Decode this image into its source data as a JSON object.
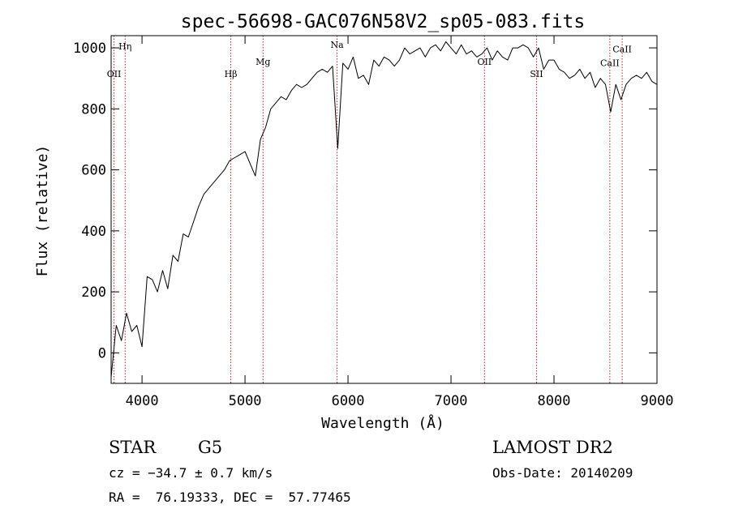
{
  "chart_data": {
    "type": "line",
    "title": "spec-56698-GAC076N58V2_sp05-083.fits",
    "xlabel": "Wavelength (Å)",
    "ylabel": "Flux (relative)",
    "xlim": [
      3700,
      9000
    ],
    "ylim": [
      -100,
      1040
    ],
    "x_ticks": [
      4000,
      5000,
      6000,
      7000,
      8000,
      9000
    ],
    "y_ticks": [
      0,
      200,
      400,
      600,
      800,
      1000
    ],
    "grid": false,
    "line_color": "#000000",
    "marker_color": "#b22222",
    "spectral_lines": [
      {
        "label": "Hη",
        "wavelength": 3836,
        "label_y": 995
      },
      {
        "label": "OII",
        "wavelength": 3728,
        "label_y": 905
      },
      {
        "label": "Hβ",
        "wavelength": 4862,
        "label_y": 905
      },
      {
        "label": "Mg",
        "wavelength": 5175,
        "label_y": 945
      },
      {
        "label": "Na",
        "wavelength": 5894,
        "label_y": 1000
      },
      {
        "label": "OII",
        "wavelength": 7325,
        "label_y": 945
      },
      {
        "label": "SII",
        "wavelength": 7830,
        "label_y": 905
      },
      {
        "label": "CaII",
        "wavelength": 8542,
        "label_y": 940
      },
      {
        "label": "CaII",
        "wavelength": 8662,
        "label_y": 985
      }
    ],
    "series": [
      {
        "x": [
          3700,
          3750,
          3800,
          3850,
          3900,
          3950,
          4000,
          4050,
          4100,
          4150,
          4200,
          4250,
          4300,
          4350,
          4400,
          4450,
          4500,
          4550,
          4600,
          4650,
          4700,
          4750,
          4800,
          4850,
          4900,
          4950,
          5000,
          5050,
          5100,
          5150,
          5200,
          5250,
          5300,
          5350,
          5400,
          5450,
          5500,
          5550,
          5600,
          5650,
          5700,
          5750,
          5800,
          5850,
          5900,
          5950,
          6000,
          6050,
          6100,
          6150,
          6200,
          6250,
          6300,
          6350,
          6400,
          6450,
          6500,
          6550,
          6600,
          6650,
          6700,
          6750,
          6800,
          6850,
          6900,
          6950,
          7000,
          7050,
          7100,
          7150,
          7200,
          7250,
          7300,
          7350,
          7400,
          7450,
          7500,
          7550,
          7600,
          7650,
          7700,
          7750,
          7800,
          7850,
          7900,
          7950,
          8000,
          8050,
          8100,
          8150,
          8200,
          8250,
          8300,
          8350,
          8400,
          8450,
          8500,
          8550,
          8600,
          8650,
          8700,
          8750,
          8800,
          8850,
          8900,
          8950,
          9000
        ],
        "y": [
          -80,
          90,
          40,
          130,
          70,
          90,
          20,
          250,
          240,
          200,
          270,
          210,
          320,
          300,
          390,
          380,
          430,
          480,
          520,
          540,
          560,
          580,
          600,
          630,
          640,
          650,
          660,
          620,
          580,
          700,
          740,
          800,
          820,
          840,
          830,
          860,
          880,
          870,
          880,
          900,
          920,
          930,
          920,
          940,
          670,
          950,
          930,
          970,
          900,
          910,
          880,
          960,
          940,
          970,
          960,
          940,
          960,
          1000,
          980,
          990,
          1000,
          970,
          1000,
          1010,
          990,
          1020,
          1000,
          980,
          1010,
          980,
          990,
          970,
          980,
          1000,
          960,
          990,
          970,
          960,
          1000,
          1000,
          1010,
          1000,
          970,
          1000,
          930,
          960,
          960,
          930,
          920,
          900,
          910,
          930,
          900,
          920,
          870,
          900,
          880,
          790,
          880,
          830,
          880,
          900,
          910,
          900,
          920,
          890,
          880
        ]
      }
    ]
  },
  "info": {
    "object_class": "STAR",
    "subclass": "G5",
    "survey": "LAMOST DR2",
    "cz": "cz = −34.7 ± 0.7 km/s",
    "obs_date": "Obs-Date: 20140209",
    "coords": "RA =  76.19333, DEC =  57.77465"
  }
}
